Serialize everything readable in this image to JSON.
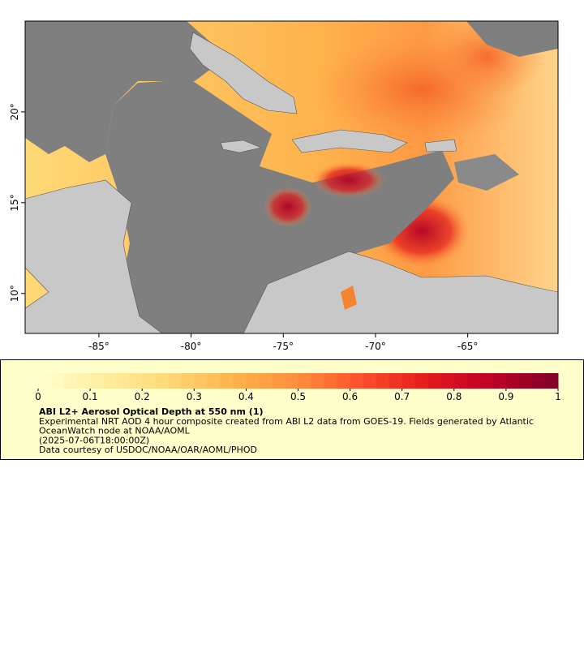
{
  "map": {
    "xlim": [
      -89,
      -60.1
    ],
    "ylim": [
      7.8,
      25
    ],
    "xticks": [
      {
        "value": -85,
        "label": "-85°"
      },
      {
        "value": -80,
        "label": "-80°"
      },
      {
        "value": -75,
        "label": "-75°"
      },
      {
        "value": -70,
        "label": "-70°"
      },
      {
        "value": -65,
        "label": "-65°"
      }
    ],
    "yticks": [
      {
        "value": 10,
        "label": "10°"
      },
      {
        "value": 15,
        "label": "15°"
      },
      {
        "value": 20,
        "label": "20°"
      }
    ]
  },
  "colorbar": {
    "lim": [
      0,
      1
    ],
    "ticks": [
      0,
      0.1,
      0.2,
      0.3,
      0.4,
      0.5,
      0.6,
      0.7,
      0.8,
      0.9,
      1
    ],
    "colors": [
      "#ffffcc",
      "#ffeda0",
      "#fed976",
      "#feb24c",
      "#fd8d3c",
      "#fc4e2a",
      "#e31a1c",
      "#bd0026",
      "#800026"
    ]
  },
  "legend": {
    "title": "ABI L2+ Aerosol Optical Depth at 550 nm (1)",
    "lines": [
      "Experimental NRT AOD 4 hour composite created from ABI L2 data from GOES-19. Fields generated by Atlantic",
      "OceanWatch node at NOAA/AOML",
      "(2025-07-06T18:00:00Z)",
      "Data courtesy of USDOC/NOAA/OAR/AOML/PHOD"
    ]
  }
}
